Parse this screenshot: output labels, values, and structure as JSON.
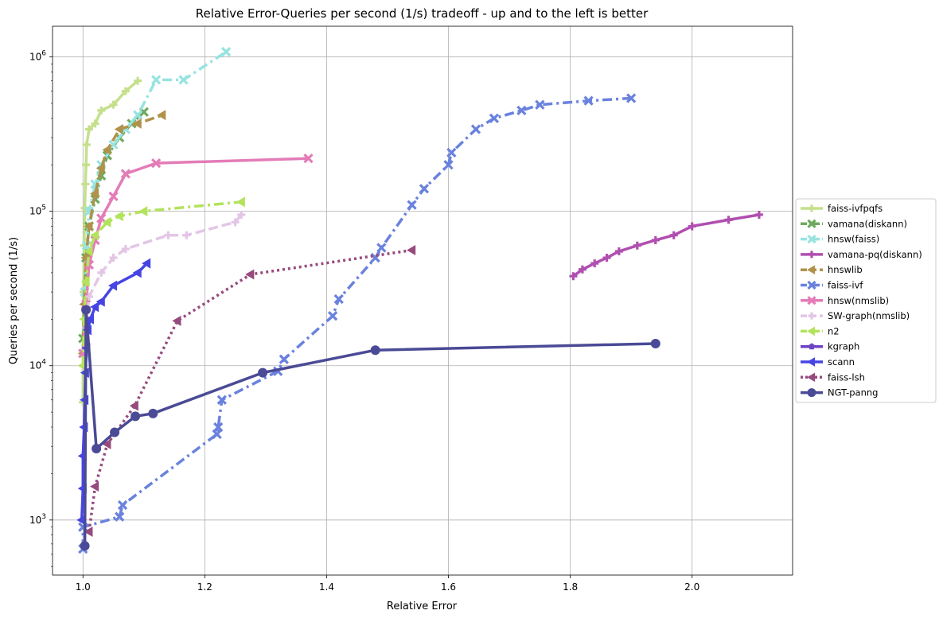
{
  "chart_data": {
    "type": "line",
    "title": "Relative Error-Queries per second (1/s) tradeoff - up and to the left is better",
    "xlabel": "Relative Error",
    "ylabel": "Queries per second (1/s)",
    "xlim": [
      0.95,
      2.165
    ],
    "ylim": [
      440,
      1580000
    ],
    "yscale": "log",
    "grid": true,
    "legend_position": "right-outside",
    "x_ticks": [
      {
        "value": 1.0,
        "label": "1.0"
      },
      {
        "value": 1.2,
        "label": "1.2"
      },
      {
        "value": 1.4,
        "label": "1.4"
      },
      {
        "value": 1.6,
        "label": "1.6"
      },
      {
        "value": 1.8,
        "label": "1.8"
      },
      {
        "value": 2.0,
        "label": "2.0"
      }
    ],
    "y_ticks": [
      {
        "value": 1000,
        "base": "10",
        "exp": "3"
      },
      {
        "value": 10000,
        "base": "10",
        "exp": "4"
      },
      {
        "value": 100000,
        "base": "10",
        "exp": "5"
      },
      {
        "value": 1000000,
        "base": "10",
        "exp": "6"
      }
    ],
    "series": [
      {
        "name": "faiss-ivfpqfs",
        "color": "#c5e08c",
        "marker": "plus",
        "dash": "solid",
        "points": [
          [
            1.0,
            5800
          ],
          [
            1.0,
            12000
          ],
          [
            1.001,
            30000
          ],
          [
            1.002,
            60000
          ],
          [
            1.003,
            105000
          ],
          [
            1.004,
            150000
          ],
          [
            1.005,
            200000
          ],
          [
            1.006,
            270000
          ],
          [
            1.01,
            340000
          ],
          [
            1.02,
            370000
          ],
          [
            1.03,
            450000
          ],
          [
            1.05,
            490000
          ],
          [
            1.07,
            600000
          ],
          [
            1.09,
            700000
          ]
        ]
      },
      {
        "name": "vamana(diskann)",
        "color": "#6daa5e",
        "marker": "x",
        "dash": "dashdot",
        "points": [
          [
            1.0,
            15000
          ],
          [
            1.005,
            50000
          ],
          [
            1.01,
            80000
          ],
          [
            1.02,
            120000
          ],
          [
            1.03,
            170000
          ],
          [
            1.04,
            230000
          ],
          [
            1.06,
            300000
          ],
          [
            1.08,
            370000
          ],
          [
            1.1,
            440000
          ]
        ]
      },
      {
        "name": "hnsw(faiss)",
        "color": "#97e3e0",
        "marker": "x",
        "dash": "dashdot",
        "points": [
          [
            1.0,
            12000
          ],
          [
            1.003,
            30000
          ],
          [
            1.006,
            60000
          ],
          [
            1.01,
            100000
          ],
          [
            1.02,
            150000
          ],
          [
            1.03,
            200000
          ],
          [
            1.05,
            270000
          ],
          [
            1.07,
            340000
          ],
          [
            1.09,
            420000
          ],
          [
            1.12,
            710000
          ],
          [
            1.165,
            710000
          ],
          [
            1.235,
            1080000
          ]
        ]
      },
      {
        "name": "vamana-pq(diskann)",
        "color": "#b04fb0",
        "marker": "plus",
        "dash": "solid",
        "points": [
          [
            1.805,
            38000
          ],
          [
            1.82,
            42000
          ],
          [
            1.84,
            46000
          ],
          [
            1.86,
            50000
          ],
          [
            1.88,
            55000
          ],
          [
            1.91,
            60000
          ],
          [
            1.94,
            65000
          ],
          [
            1.97,
            70000
          ],
          [
            2.0,
            80000
          ],
          [
            2.06,
            88000
          ],
          [
            2.11,
            95000
          ]
        ]
      },
      {
        "name": "hnswlib",
        "color": "#b0924b",
        "marker": "triangle-left",
        "dash": "dashed",
        "points": [
          [
            1.0,
            12000
          ],
          [
            1.002,
            25000
          ],
          [
            1.005,
            50000
          ],
          [
            1.01,
            80000
          ],
          [
            1.02,
            130000
          ],
          [
            1.03,
            190000
          ],
          [
            1.04,
            250000
          ],
          [
            1.06,
            340000
          ],
          [
            1.09,
            370000
          ],
          [
            1.13,
            420000
          ]
        ]
      },
      {
        "name": "faiss-ivf",
        "color": "#6a82de",
        "marker": "x",
        "dash": "dashdot",
        "points": [
          [
            1.0,
            650
          ],
          [
            1.0,
            900
          ],
          [
            1.06,
            1050
          ],
          [
            1.065,
            1250
          ],
          [
            1.22,
            3600
          ],
          [
            1.222,
            4000
          ],
          [
            1.228,
            6000
          ],
          [
            1.32,
            9200
          ],
          [
            1.33,
            11000
          ],
          [
            1.41,
            21000
          ],
          [
            1.42,
            27000
          ],
          [
            1.48,
            50000
          ],
          [
            1.49,
            58000
          ],
          [
            1.54,
            110000
          ],
          [
            1.56,
            140000
          ],
          [
            1.6,
            200000
          ],
          [
            1.605,
            240000
          ],
          [
            1.645,
            340000
          ],
          [
            1.675,
            400000
          ],
          [
            1.72,
            450000
          ],
          [
            1.75,
            490000
          ],
          [
            1.83,
            520000
          ],
          [
            1.9,
            540000
          ]
        ]
      },
      {
        "name": "hnsw(nmslib)",
        "color": "#e37cb7",
        "marker": "x",
        "dash": "solid",
        "points": [
          [
            1.0,
            12000
          ],
          [
            1.005,
            25000
          ],
          [
            1.01,
            45000
          ],
          [
            1.02,
            65000
          ],
          [
            1.03,
            90000
          ],
          [
            1.05,
            125000
          ],
          [
            1.07,
            175000
          ],
          [
            1.12,
            205000
          ],
          [
            1.37,
            220000
          ]
        ]
      },
      {
        "name": "SW-graph(nmslib)",
        "color": "#e3c6e6",
        "marker": "plus",
        "dash": "dashed",
        "points": [
          [
            1.0,
            10000
          ],
          [
            1.01,
            28000
          ],
          [
            1.03,
            40000
          ],
          [
            1.05,
            50000
          ],
          [
            1.07,
            57000
          ],
          [
            1.14,
            70000
          ],
          [
            1.17,
            70000
          ],
          [
            1.25,
            85000
          ],
          [
            1.26,
            95000
          ]
        ]
      },
      {
        "name": "n2",
        "color": "#b3e35d",
        "marker": "triangle-left",
        "dash": "dashdot",
        "points": [
          [
            1.0,
            10000
          ],
          [
            1.002,
            20000
          ],
          [
            1.005,
            35000
          ],
          [
            1.01,
            55000
          ],
          [
            1.02,
            70000
          ],
          [
            1.04,
            85000
          ],
          [
            1.06,
            93000
          ],
          [
            1.1,
            100000
          ],
          [
            1.26,
            115000
          ]
        ]
      },
      {
        "name": "kgraph",
        "color": "#6e43c6",
        "marker": "pentagon",
        "dash": "solid",
        "points": []
      },
      {
        "name": "scann",
        "color": "#4645e3",
        "marker": "triangle-left",
        "dash": "solid",
        "points": [
          [
            0.998,
            1000
          ],
          [
            1.0,
            1600
          ],
          [
            1.0,
            2600
          ],
          [
            1.002,
            4000
          ],
          [
            1.003,
            6000
          ],
          [
            1.004,
            9000
          ],
          [
            1.006,
            13000
          ],
          [
            1.008,
            17000
          ],
          [
            1.012,
            20000
          ],
          [
            1.02,
            24000
          ],
          [
            1.03,
            26000
          ],
          [
            1.05,
            33000
          ],
          [
            1.09,
            40000
          ],
          [
            1.105,
            46000
          ]
        ]
      },
      {
        "name": "faiss-lsh",
        "color": "#974a7c",
        "marker": "triangle-left",
        "dash": "dotted",
        "points": [
          [
            1.01,
            840
          ],
          [
            1.02,
            1650
          ],
          [
            1.04,
            3100
          ],
          [
            1.085,
            5500
          ],
          [
            1.155,
            19500
          ],
          [
            1.275,
            39000
          ],
          [
            1.54,
            56000
          ]
        ]
      },
      {
        "name": "NGT-panng",
        "color": "#4a4a96",
        "marker": "circle",
        "dash": "solid",
        "points": [
          [
            1.003,
            680
          ],
          [
            1.005,
            23000
          ],
          [
            1.022,
            2900
          ],
          [
            1.052,
            3700
          ],
          [
            1.086,
            4700
          ],
          [
            1.115,
            4900
          ],
          [
            1.295,
            9000
          ],
          [
            1.48,
            12600
          ],
          [
            1.94,
            13900
          ]
        ]
      }
    ]
  }
}
